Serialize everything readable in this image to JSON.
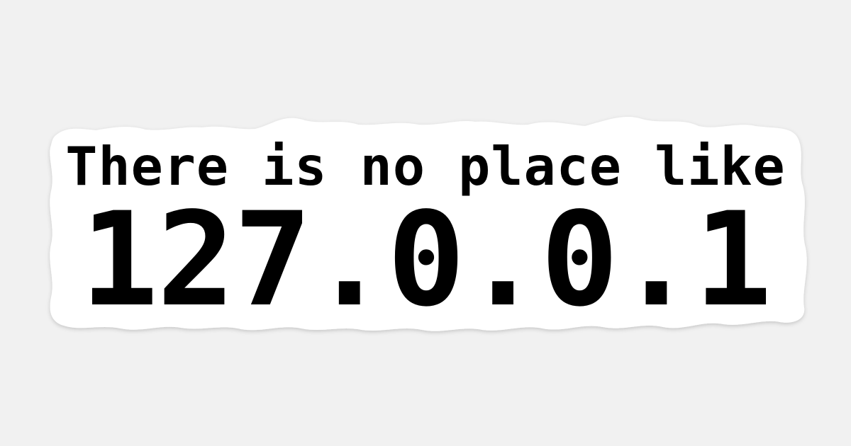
{
  "sticker": {
    "line1": "There is no place like",
    "line2": "127.0.0.1"
  },
  "colors": {
    "background": "#f1f1f1",
    "sticker": "#ffffff",
    "text": "#000000"
  }
}
